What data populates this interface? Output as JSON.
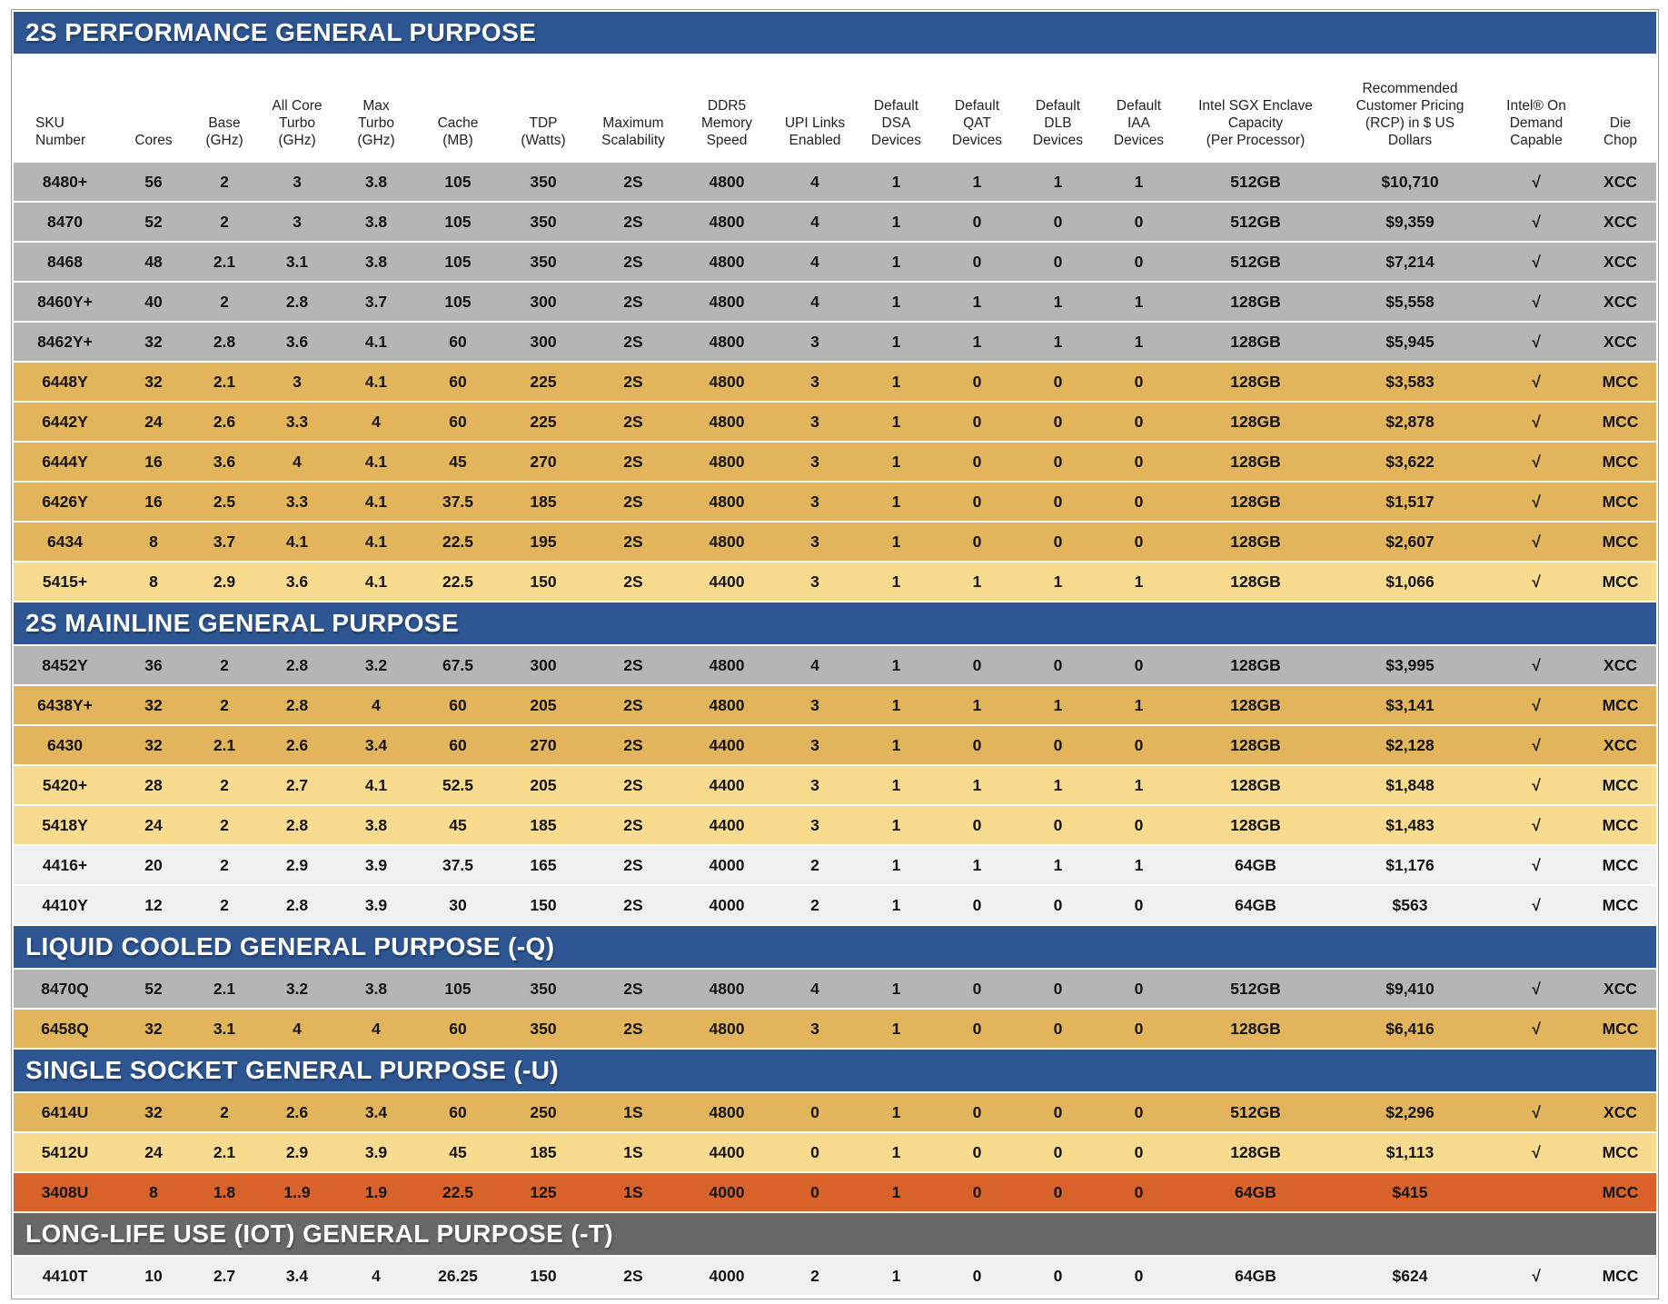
{
  "colors": {
    "section_blue": "#2d5693",
    "section_gray": "#686868",
    "row_gray": "#b5b5b5",
    "row_gold": "#e2b45c",
    "row_light_gold": "#f9db8f",
    "row_light": "#f0f0f0",
    "row_orange": "#d9622b",
    "section_title_text": "#ffffff",
    "data_text": "#151515"
  },
  "table": {
    "checkmark": "√",
    "columns": [
      "SKU\nNumber",
      "Cores",
      "Base\n(GHz)",
      "All Core\nTurbo\n(GHz)",
      "Max\nTurbo\n(GHz)",
      "Cache\n(MB)",
      "TDP\n(Watts)",
      "Maximum\nScalability",
      "DDR5\nMemory\nSpeed",
      "UPI Links\nEnabled",
      "Default\nDSA\nDevices",
      "Default\nQAT\nDevices",
      "Default\nDLB\nDevices",
      "Default\nIAA\nDevices",
      "Intel SGX Enclave\nCapacity\n(Per Processor)",
      "Recommended\nCustomer Pricing\n(RCP) in $ US\nDollars",
      "Intel® On\nDemand\nCapable",
      "Die\nChop"
    ],
    "sections": [
      {
        "title": "2S PERFORMANCE GENERAL PURPOSE",
        "theme": "blue",
        "rows": [
          {
            "tone": "gray",
            "cells": [
              "8480+",
              "56",
              "2",
              "3",
              "3.8",
              "105",
              "350",
              "2S",
              "4800",
              "4",
              "1",
              "1",
              "1",
              "1",
              "512GB",
              "$10,710",
              "√",
              "XCC"
            ]
          },
          {
            "tone": "gray",
            "cells": [
              "8470",
              "52",
              "2",
              "3",
              "3.8",
              "105",
              "350",
              "2S",
              "4800",
              "4",
              "1",
              "0",
              "0",
              "0",
              "512GB",
              "$9,359",
              "√",
              "XCC"
            ]
          },
          {
            "tone": "gray",
            "cells": [
              "8468",
              "48",
              "2.1",
              "3.1",
              "3.8",
              "105",
              "350",
              "2S",
              "4800",
              "4",
              "1",
              "0",
              "0",
              "0",
              "512GB",
              "$7,214",
              "√",
              "XCC"
            ]
          },
          {
            "tone": "gray",
            "cells": [
              "8460Y+",
              "40",
              "2",
              "2.8",
              "3.7",
              "105",
              "300",
              "2S",
              "4800",
              "4",
              "1",
              "1",
              "1",
              "1",
              "128GB",
              "$5,558",
              "√",
              "XCC"
            ]
          },
          {
            "tone": "gray",
            "cells": [
              "8462Y+",
              "32",
              "2.8",
              "3.6",
              "4.1",
              "60",
              "300",
              "2S",
              "4800",
              "3",
              "1",
              "1",
              "1",
              "1",
              "128GB",
              "$5,945",
              "√",
              "XCC"
            ]
          },
          {
            "tone": "gold",
            "cells": [
              "6448Y",
              "32",
              "2.1",
              "3",
              "4.1",
              "60",
              "225",
              "2S",
              "4800",
              "3",
              "1",
              "0",
              "0",
              "0",
              "128GB",
              "$3,583",
              "√",
              "MCC"
            ]
          },
          {
            "tone": "gold",
            "cells": [
              "6442Y",
              "24",
              "2.6",
              "3.3",
              "4",
              "60",
              "225",
              "2S",
              "4800",
              "3",
              "1",
              "0",
              "0",
              "0",
              "128GB",
              "$2,878",
              "√",
              "MCC"
            ]
          },
          {
            "tone": "gold",
            "cells": [
              "6444Y",
              "16",
              "3.6",
              "4",
              "4.1",
              "45",
              "270",
              "2S",
              "4800",
              "3",
              "1",
              "0",
              "0",
              "0",
              "128GB",
              "$3,622",
              "√",
              "MCC"
            ]
          },
          {
            "tone": "gold",
            "cells": [
              "6426Y",
              "16",
              "2.5",
              "3.3",
              "4.1",
              "37.5",
              "185",
              "2S",
              "4800",
              "3",
              "1",
              "0",
              "0",
              "0",
              "128GB",
              "$1,517",
              "√",
              "MCC"
            ]
          },
          {
            "tone": "gold",
            "cells": [
              "6434",
              "8",
              "3.7",
              "4.1",
              "4.1",
              "22.5",
              "195",
              "2S",
              "4800",
              "3",
              "1",
              "0",
              "0",
              "0",
              "128GB",
              "$2,607",
              "√",
              "MCC"
            ]
          },
          {
            "tone": "lightgold",
            "cells": [
              "5415+",
              "8",
              "2.9",
              "3.6",
              "4.1",
              "22.5",
              "150",
              "2S",
              "4400",
              "3",
              "1",
              "1",
              "1",
              "1",
              "128GB",
              "$1,066",
              "√",
              "MCC"
            ]
          }
        ]
      },
      {
        "title": "2S MAINLINE GENERAL PURPOSE",
        "theme": "blue",
        "rows": [
          {
            "tone": "gray",
            "cells": [
              "8452Y",
              "36",
              "2",
              "2.8",
              "3.2",
              "67.5",
              "300",
              "2S",
              "4800",
              "4",
              "1",
              "0",
              "0",
              "0",
              "128GB",
              "$3,995",
              "√",
              "XCC"
            ]
          },
          {
            "tone": "gold",
            "cells": [
              "6438Y+",
              "32",
              "2",
              "2.8",
              "4",
              "60",
              "205",
              "2S",
              "4800",
              "3",
              "1",
              "1",
              "1",
              "1",
              "128GB",
              "$3,141",
              "√",
              "MCC"
            ]
          },
          {
            "tone": "gold",
            "cells": [
              "6430",
              "32",
              "2.1",
              "2.6",
              "3.4",
              "60",
              "270",
              "2S",
              "4400",
              "3",
              "1",
              "0",
              "0",
              "0",
              "128GB",
              "$2,128",
              "√",
              "XCC"
            ]
          },
          {
            "tone": "lightgold",
            "cells": [
              "5420+",
              "28",
              "2",
              "2.7",
              "4.1",
              "52.5",
              "205",
              "2S",
              "4400",
              "3",
              "1",
              "1",
              "1",
              "1",
              "128GB",
              "$1,848",
              "√",
              "MCC"
            ]
          },
          {
            "tone": "lightgold",
            "cells": [
              "5418Y",
              "24",
              "2",
              "2.8",
              "3.8",
              "45",
              "185",
              "2S",
              "4400",
              "3",
              "1",
              "0",
              "0",
              "0",
              "128GB",
              "$1,483",
              "√",
              "MCC"
            ]
          },
          {
            "tone": "white",
            "cells": [
              "4416+",
              "20",
              "2",
              "2.9",
              "3.9",
              "37.5",
              "165",
              "2S",
              "4000",
              "2",
              "1",
              "1",
              "1",
              "1",
              "64GB",
              "$1,176",
              "√",
              "MCC"
            ]
          },
          {
            "tone": "white",
            "cells": [
              "4410Y",
              "12",
              "2",
              "2.8",
              "3.9",
              "30",
              "150",
              "2S",
              "4000",
              "2",
              "1",
              "0",
              "0",
              "0",
              "64GB",
              "$563",
              "√",
              "MCC"
            ]
          }
        ]
      },
      {
        "title": "LIQUID COOLED GENERAL PURPOSE (-Q)",
        "theme": "blue",
        "rows": [
          {
            "tone": "gray",
            "cells": [
              "8470Q",
              "52",
              "2.1",
              "3.2",
              "3.8",
              "105",
              "350",
              "2S",
              "4800",
              "4",
              "1",
              "0",
              "0",
              "0",
              "512GB",
              "$9,410",
              "√",
              "XCC"
            ]
          },
          {
            "tone": "gold",
            "cells": [
              "6458Q",
              "32",
              "3.1",
              "4",
              "4",
              "60",
              "350",
              "2S",
              "4800",
              "3",
              "1",
              "0",
              "0",
              "0",
              "128GB",
              "$6,416",
              "√",
              "MCC"
            ]
          }
        ]
      },
      {
        "title": "SINGLE SOCKET GENERAL PURPOSE (-U)",
        "theme": "blue",
        "rows": [
          {
            "tone": "gold",
            "cells": [
              "6414U",
              "32",
              "2",
              "2.6",
              "3.4",
              "60",
              "250",
              "1S",
              "4800",
              "0",
              "1",
              "0",
              "0",
              "0",
              "512GB",
              "$2,296",
              "√",
              "XCC"
            ]
          },
          {
            "tone": "lightgold",
            "cells": [
              "5412U",
              "24",
              "2.1",
              "2.9",
              "3.9",
              "45",
              "185",
              "1S",
              "4400",
              "0",
              "1",
              "0",
              "0",
              "0",
              "128GB",
              "$1,113",
              "√",
              "MCC"
            ]
          },
          {
            "tone": "orange",
            "cells": [
              "3408U",
              "8",
              "1.8",
              "1..9",
              "1.9",
              "22.5",
              "125",
              "1S",
              "4000",
              "0",
              "1",
              "0",
              "0",
              "0",
              "64GB",
              "$415",
              "",
              "MCC"
            ]
          }
        ]
      },
      {
        "title": "LONG-LIFE USE (IOT) GENERAL PURPOSE (-T)",
        "theme": "dark",
        "rows": [
          {
            "tone": "white",
            "cells": [
              "4410T",
              "10",
              "2.7",
              "3.4",
              "4",
              "26.25",
              "150",
              "2S",
              "4000",
              "2",
              "1",
              "0",
              "0",
              "0",
              "64GB",
              "$624",
              "√",
              "MCC"
            ]
          }
        ]
      }
    ]
  }
}
